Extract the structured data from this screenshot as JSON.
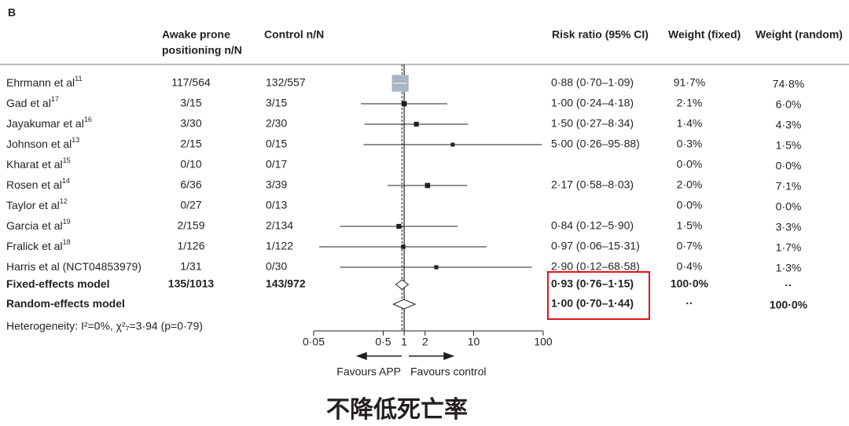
{
  "chart_data": {
    "type": "forest",
    "panel_label": "B",
    "headers": {
      "app": [
        "Awake prone",
        "positioning n/N"
      ],
      "control": "Control n/N",
      "rr": "Risk ratio (95% CI)",
      "weight_fixed": "Weight (fixed)",
      "weight_random": "Weight (random)"
    },
    "studies": [
      {
        "name": "Ehrmann et al",
        "ref": "11",
        "app": "117/564",
        "control": "132/557",
        "rr": 0.88,
        "ci_lower": 0.7,
        "ci_upper": 1.09,
        "rr_label": "0·88 (0·70–1·09)",
        "weight_fixed": 91.7,
        "weight_fixed_label": "91·7%",
        "weight_random_label": "74·8%"
      },
      {
        "name": "Gad et al",
        "ref": "17",
        "app": "3/15",
        "control": "3/15",
        "rr": 1.0,
        "ci_lower": 0.24,
        "ci_upper": 4.18,
        "rr_label": "1·00 (0·24–4·18)",
        "weight_fixed": 2.1,
        "weight_fixed_label": "2·1%",
        "weight_random_label": "6·0%"
      },
      {
        "name": "Jayakumar et al",
        "ref": "16",
        "app": "3/30",
        "control": "2/30",
        "rr": 1.5,
        "ci_lower": 0.27,
        "ci_upper": 8.34,
        "rr_label": "1·50 (0·27–8·34)",
        "weight_fixed": 1.4,
        "weight_fixed_label": "1·4%",
        "weight_random_label": "4·3%"
      },
      {
        "name": "Johnson et al",
        "ref": "13",
        "app": "2/15",
        "control": "0/15",
        "rr": 5.0,
        "ci_lower": 0.26,
        "ci_upper": 95.88,
        "rr_label": "5·00 (0·26–95·88)",
        "weight_fixed": 0.3,
        "weight_fixed_label": "0·3%",
        "weight_random_label": "1·5%"
      },
      {
        "name": "Kharat et al",
        "ref": "15",
        "app": "0/10",
        "control": "0/17",
        "weight_fixed_label": "0·0%",
        "weight_random_label": "0·0%"
      },
      {
        "name": "Rosen et al",
        "ref": "14",
        "app": "6/36",
        "control": "3/39",
        "rr": 2.17,
        "ci_lower": 0.58,
        "ci_upper": 8.03,
        "rr_label": "2·17 (0·58–8·03)",
        "weight_fixed": 2.0,
        "weight_fixed_label": "2·0%",
        "weight_random_label": "7·1%"
      },
      {
        "name": "Taylor et al",
        "ref": "12",
        "app": "0/27",
        "control": "0/13",
        "weight_fixed_label": "0·0%",
        "weight_random_label": "0·0%"
      },
      {
        "name": "Garcia et al",
        "ref": "19",
        "app": "2/159",
        "control": "2/134",
        "rr": 0.84,
        "ci_lower": 0.12,
        "ci_upper": 5.9,
        "rr_label": "0·84 (0·12–5·90)",
        "weight_fixed": 1.5,
        "weight_fixed_label": "1·5%",
        "weight_random_label": "3·3%"
      },
      {
        "name": "Fralick et al",
        "ref": "18",
        "app": "1/126",
        "control": "1/122",
        "rr": 0.97,
        "ci_lower": 0.06,
        "ci_upper": 15.31,
        "rr_label": "0·97 (0·06–15·31)",
        "weight_fixed": 0.7,
        "weight_fixed_label": "0·7%",
        "weight_random_label": "1·7%"
      },
      {
        "name": "Harris et al (NCT04853979)",
        "app": "1/31",
        "control": "0/30",
        "rr": 2.9,
        "ci_lower": 0.12,
        "ci_upper": 68.58,
        "rr_label": "2·90 (0·12–68·58)",
        "weight_fixed": 0.4,
        "weight_fixed_label": "0·4%",
        "weight_random_label": "1·3%"
      }
    ],
    "pooled": [
      {
        "name": "Fixed-effects model",
        "app": "135/1013",
        "control": "143/972",
        "rr": 0.93,
        "ci_lower": 0.76,
        "ci_upper": 1.15,
        "rr_label": "0·93 (0·76–1·15)",
        "weight_fixed_label": "100·0%",
        "weight_random_label": "··"
      },
      {
        "name": "Random-effects model",
        "rr": 1.0,
        "ci_lower": 0.7,
        "ci_upper": 1.44,
        "rr_label": "1·00 (0·70–1·44)",
        "weight_fixed_label": "··",
        "weight_random_label": "100·0%"
      }
    ],
    "heterogeneity": "Heterogeneity: I²=0%, χ²₇=3·94 (p=0·79)",
    "log_x": true,
    "xlim": [
      0.05,
      100
    ],
    "xticks": [
      {
        "value": 0.05,
        "label": "0·05"
      },
      {
        "value": 0.5,
        "label": "0·5"
      },
      1,
      2,
      10,
      100
    ],
    "reference_line": 1,
    "favours_left": "Favours APP",
    "favours_right": "Favours control",
    "caption": "不降低死亡率"
  }
}
